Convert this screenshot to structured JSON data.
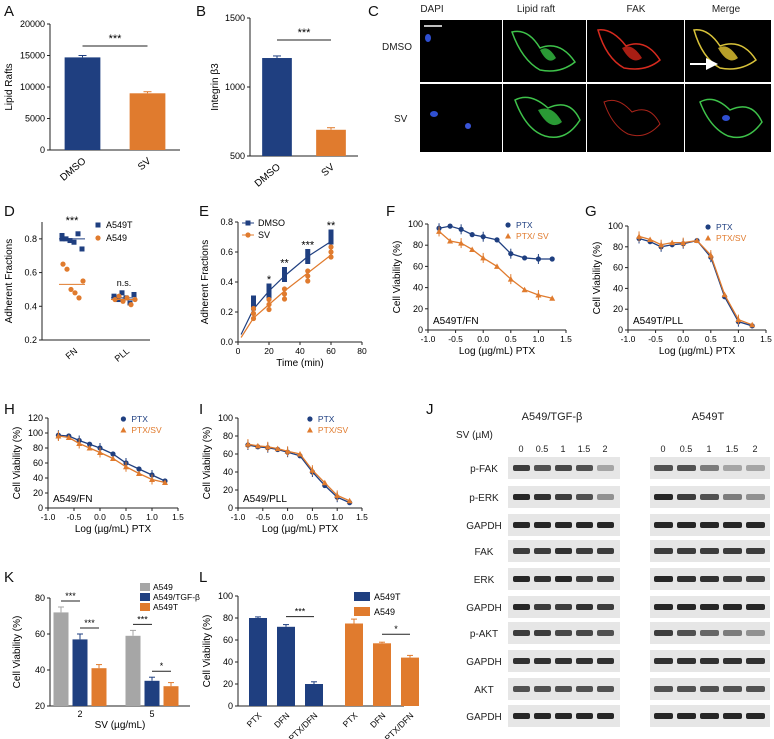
{
  "colors": {
    "blue": "#1f3f80",
    "orange": "#e07b2e",
    "gray": "#a6a6a6",
    "green": "#3ec24a",
    "red": "#d62a1e",
    "cellblue": "#2f4fd0"
  },
  "panel_letters": {
    "A": "A",
    "B": "B",
    "C": "C",
    "D": "D",
    "E": "E",
    "F": "F",
    "G": "G",
    "H": "H",
    "I": "I",
    "J": "J",
    "K": "K",
    "L": "L"
  },
  "chart_data": [
    {
      "id": "A",
      "type": "bar",
      "categories": [
        "DMSO",
        "SV"
      ],
      "values": [
        14700,
        9000
      ],
      "errors": [
        300,
        250
      ],
      "colors": [
        "blue",
        "orange"
      ],
      "ylabel": "Lipid Rafts",
      "ylim": [
        0,
        20000
      ],
      "yticks": [
        "0",
        "5000",
        "10000",
        "15000",
        "20000"
      ],
      "sig": "***"
    },
    {
      "id": "B",
      "type": "bar",
      "categories": [
        "DMSO",
        "SV"
      ],
      "values": [
        1210,
        690
      ],
      "errors": [
        15,
        15
      ],
      "colors": [
        "blue",
        "orange"
      ],
      "ylabel": "Integrin β3",
      "ylim": [
        500,
        1500
      ],
      "yticks": [
        "500",
        "1000",
        "1500"
      ],
      "sig": "***"
    },
    {
      "id": "D",
      "type": "scatter",
      "categories": [
        "FN",
        "PLL"
      ],
      "ylabel": "Adherent Fractions",
      "ylim": [
        0.2,
        0.9
      ],
      "yticks": [
        "0.2",
        "0.4",
        "0.6",
        "0.8"
      ],
      "series": [
        {
          "name": "A549T",
          "color": "blue",
          "marker": "square",
          "points": [
            [
              0,
              0.82
            ],
            [
              0,
              0.8
            ],
            [
              0,
              0.79
            ],
            [
              0,
              0.78
            ],
            [
              0,
              0.83
            ],
            [
              0,
              0.74
            ],
            [
              0,
              0.8
            ],
            [
              1,
              0.46
            ],
            [
              1,
              0.44
            ],
            [
              1,
              0.48
            ],
            [
              1,
              0.45
            ],
            [
              1,
              0.42
            ],
            [
              1,
              0.47
            ]
          ],
          "means": [
            0.8,
            0.45
          ]
        },
        {
          "name": "A549",
          "color": "orange",
          "marker": "circle",
          "points": [
            [
              0,
              0.65
            ],
            [
              0,
              0.62
            ],
            [
              0,
              0.5
            ],
            [
              0,
              0.48
            ],
            [
              0,
              0.45
            ],
            [
              0,
              0.55
            ],
            [
              1,
              0.44
            ],
            [
              1,
              0.46
            ],
            [
              1,
              0.43
            ],
            [
              1,
              0.45
            ],
            [
              1,
              0.41
            ],
            [
              1,
              0.44
            ]
          ],
          "means": [
            0.53,
            0.44
          ]
        }
      ],
      "annotations": [
        "***",
        "n.s."
      ]
    },
    {
      "id": "E",
      "type": "line",
      "ylabel": "Adherent Fractions",
      "xlabel": "Time (min)",
      "xlim": [
        0,
        80
      ],
      "ylim": [
        0,
        0.8
      ],
      "xticks": [
        "0",
        "20",
        "40",
        "60",
        "80"
      ],
      "yticks": [
        "0.0",
        "0.2",
        "0.4",
        "0.6",
        "0.8"
      ],
      "series": [
        {
          "name": "DMSO",
          "color": "blue",
          "marker": "square",
          "x": [
            10,
            20,
            30,
            45,
            60
          ],
          "y": [
            0.26,
            0.34,
            0.45,
            0.57,
            0.7
          ]
        },
        {
          "name": "SV",
          "color": "orange",
          "marker": "circle",
          "x": [
            10,
            20,
            30,
            45,
            60
          ],
          "y": [
            0.19,
            0.25,
            0.32,
            0.44,
            0.6
          ]
        }
      ],
      "fit": {
        "DMSO": [
          [
            2,
            0.05
          ],
          [
            10,
            0.22
          ],
          [
            20,
            0.34
          ],
          [
            30,
            0.44
          ],
          [
            45,
            0.57
          ],
          [
            60,
            0.67
          ]
        ],
        "SV": [
          [
            2,
            0.03
          ],
          [
            10,
            0.16
          ],
          [
            20,
            0.25
          ],
          [
            30,
            0.34
          ],
          [
            45,
            0.46
          ],
          [
            60,
            0.58
          ]
        ]
      },
      "sig": [
        {
          "x": 20,
          "label": "*"
        },
        {
          "x": 30,
          "label": "**"
        },
        {
          "x": 45,
          "label": "***"
        },
        {
          "x": 60,
          "label": "**"
        }
      ]
    },
    {
      "id": "F",
      "type": "line",
      "ylabel": "Cell Viability (%)",
      "xlabel": "Log (µg/mL) PTX",
      "xlim": [
        -1,
        1.5
      ],
      "ylim": [
        0,
        100
      ],
      "xticks": [
        "-1.0",
        "-0.5",
        "0.0",
        "0.5",
        "1.0",
        "1.5"
      ],
      "yticks": [
        "0",
        "20",
        "40",
        "60",
        "80",
        "100"
      ],
      "inset": "A549T/FN",
      "series": [
        {
          "name": "PTX",
          "color": "blue",
          "marker": "circle",
          "x": [
            -0.8,
            -0.6,
            -0.4,
            -0.2,
            0.0,
            0.25,
            0.5,
            0.75,
            1.0,
            1.25
          ],
          "y": [
            96,
            98,
            95,
            90,
            88,
            85,
            72,
            68,
            67,
            67
          ]
        },
        {
          "name": "PTX/ SV",
          "color": "orange",
          "marker": "triangle",
          "x": [
            -0.8,
            -0.6,
            -0.4,
            -0.2,
            0.0,
            0.25,
            0.5,
            0.75,
            1.0,
            1.25
          ],
          "y": [
            93,
            84,
            82,
            76,
            68,
            60,
            48,
            38,
            33,
            30
          ]
        }
      ]
    },
    {
      "id": "G",
      "type": "line",
      "ylabel": "Cell Viability (%)",
      "xlabel": "Log (µg/mL) PTX",
      "xlim": [
        -1,
        1.5
      ],
      "ylim": [
        0,
        100
      ],
      "xticks": [
        "-1.0",
        "-0.5",
        "0.0",
        "0.5",
        "1.0",
        "1.5"
      ],
      "yticks": [
        "0",
        "20",
        "40",
        "60",
        "80",
        "100"
      ],
      "inset": "A549T/PLL",
      "series": [
        {
          "name": "PTX",
          "color": "blue",
          "marker": "circle",
          "x": [
            -0.8,
            -0.6,
            -0.4,
            -0.2,
            0.0,
            0.25,
            0.5,
            0.75,
            1.0,
            1.25
          ],
          "y": [
            88,
            85,
            80,
            82,
            83,
            86,
            70,
            32,
            8,
            4
          ]
        },
        {
          "name": "PTX/SV",
          "color": "orange",
          "marker": "triangle",
          "x": [
            -0.8,
            -0.6,
            -0.4,
            -0.2,
            0.0,
            0.25,
            0.5,
            0.75,
            1.0,
            1.25
          ],
          "y": [
            90,
            87,
            82,
            84,
            84,
            86,
            72,
            34,
            10,
            5
          ]
        }
      ]
    },
    {
      "id": "H",
      "type": "line",
      "ylabel": "Cell Viability (%)",
      "xlabel": "Log (µg/mL) PTX",
      "xlim": [
        -1,
        1.5
      ],
      "ylim": [
        0,
        120
      ],
      "xticks": [
        "-1.0",
        "-0.5",
        "0.0",
        "0.5",
        "1.0",
        "1.5"
      ],
      "yticks": [
        "0",
        "20",
        "40",
        "60",
        "80",
        "100",
        "120"
      ],
      "inset": "A549/FN",
      "series": [
        {
          "name": "PTX",
          "color": "blue",
          "marker": "circle",
          "x": [
            -0.8,
            -0.6,
            -0.4,
            -0.2,
            0.0,
            0.25,
            0.5,
            0.75,
            1.0,
            1.25
          ],
          "y": [
            97,
            96,
            90,
            85,
            80,
            72,
            60,
            52,
            44,
            36
          ]
        },
        {
          "name": "PTX/SV",
          "color": "orange",
          "marker": "triangle",
          "x": [
            -0.8,
            -0.6,
            -0.4,
            -0.2,
            0.0,
            0.25,
            0.5,
            0.75,
            1.0,
            1.25
          ],
          "y": [
            96,
            94,
            86,
            80,
            74,
            66,
            55,
            46,
            38,
            34
          ]
        }
      ]
    },
    {
      "id": "I",
      "type": "line",
      "ylabel": "Cell Viability (%)",
      "xlabel": "Log (µg/mL) PTX",
      "xlim": [
        -1,
        1.5
      ],
      "ylim": [
        0,
        100
      ],
      "xticks": [
        "-1.0",
        "-0.5",
        "0.0",
        "0.5",
        "1.0",
        "1.5"
      ],
      "yticks": [
        "0",
        "20",
        "40",
        "60",
        "80",
        "100"
      ],
      "inset": "A549/PLL",
      "series": [
        {
          "name": "PTX",
          "color": "blue",
          "marker": "circle",
          "x": [
            -0.8,
            -0.6,
            -0.4,
            -0.2,
            0.0,
            0.25,
            0.5,
            0.75,
            1.0,
            1.25
          ],
          "y": [
            70,
            68,
            67,
            65,
            62,
            58,
            40,
            25,
            12,
            6
          ]
        },
        {
          "name": "PTX/SV",
          "color": "orange",
          "marker": "triangle",
          "x": [
            -0.8,
            -0.6,
            -0.4,
            -0.2,
            0.0,
            0.25,
            0.5,
            0.75,
            1.0,
            1.25
          ],
          "y": [
            71,
            69,
            68,
            66,
            63,
            60,
            42,
            28,
            14,
            8
          ]
        }
      ]
    },
    {
      "id": "K",
      "type": "bar",
      "xlabel": "SV (µg/mL)",
      "ylabel": "Cell Viability (%)",
      "ylim": [
        20,
        80
      ],
      "yticks": [
        "20",
        "40",
        "60",
        "80"
      ],
      "categories": [
        "2",
        "5"
      ],
      "series": [
        {
          "name": "A549",
          "color": "gray",
          "values": [
            72,
            59
          ],
          "errors": [
            3,
            3
          ]
        },
        {
          "name": "A549/TGF-β",
          "color": "blue",
          "values": [
            57,
            34
          ],
          "errors": [
            3,
            2
          ]
        },
        {
          "name": "A549T",
          "color": "orange",
          "values": [
            41,
            31
          ],
          "errors": [
            2,
            2
          ]
        }
      ],
      "sig": [
        "***",
        "***",
        "***",
        "*"
      ]
    },
    {
      "id": "L",
      "type": "bar",
      "ylabel": "Cell Viability (%)",
      "ylim": [
        0,
        100
      ],
      "yticks": [
        "0",
        "20",
        "40",
        "60",
        "80",
        "100"
      ],
      "groups": [
        {
          "name": "A549T",
          "color": "blue",
          "labels": [
            "PTX",
            "DFN",
            "PTX/DFN"
          ],
          "values": [
            80,
            72,
            20
          ],
          "errors": [
            1,
            2,
            2
          ]
        },
        {
          "name": "A549",
          "color": "orange",
          "labels": [
            "PTX",
            "DFN",
            "PTX/DFN"
          ],
          "values": [
            75,
            57,
            44
          ],
          "errors": [
            4,
            1,
            2
          ]
        }
      ],
      "sig": [
        "***",
        "*"
      ]
    }
  ],
  "panelC": {
    "columns": [
      "DAPI",
      "Lipid raft",
      "FAK",
      "Merge"
    ],
    "rows": [
      "DMSO",
      "SV"
    ]
  },
  "panelJ": {
    "left_title": "A549/TGF-β",
    "right_title": "A549T",
    "sv_label": "SV (µM)",
    "doses": [
      "0",
      "0.5",
      "1",
      "1.5",
      "2"
    ],
    "doses_right": [
      "0",
      "0.5",
      "1",
      "1.5",
      "2"
    ],
    "rows": [
      "p-FAK",
      "p-ERK",
      "GAPDH",
      "FAK",
      "ERK",
      "GAPDH",
      "p-AKT",
      "GAPDH",
      "AKT",
      "GAPDH"
    ]
  }
}
